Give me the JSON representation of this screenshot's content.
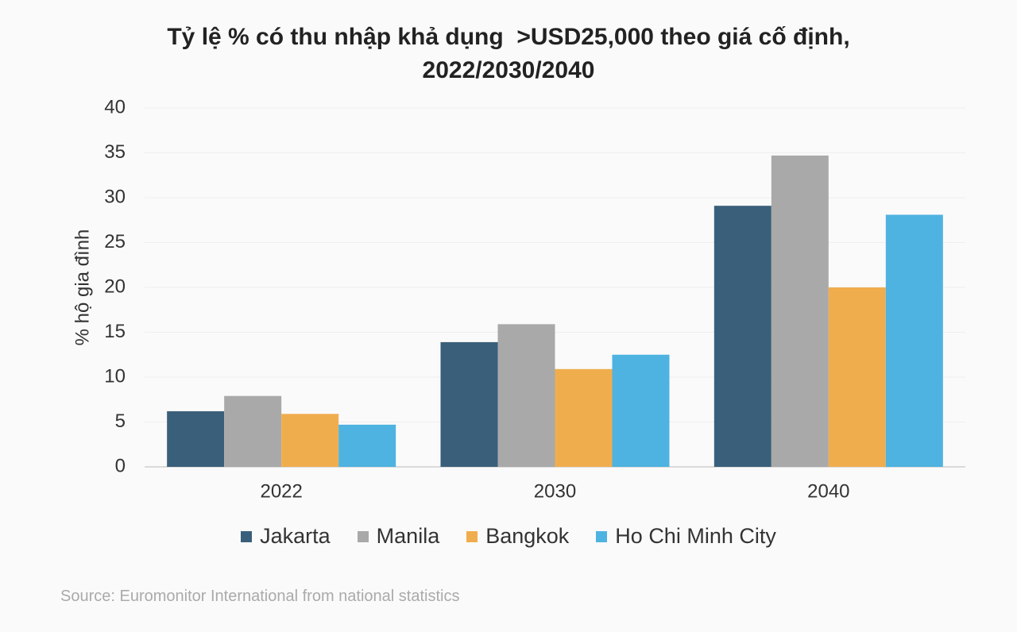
{
  "chart_data": {
    "type": "bar",
    "title": "Tỷ lệ % có thu nhập khả dụng  >USD25,000 theo giá cố định, 2022/2030/2040",
    "y_label": "% hộ gia đình",
    "categories": [
      "2022",
      "2030",
      "2040"
    ],
    "series": [
      {
        "name": "Jakarta",
        "color": "#3a5f7a",
        "values": [
          6.2,
          13.9,
          29.1
        ]
      },
      {
        "name": "Manila",
        "color": "#a9a9a9",
        "values": [
          7.9,
          15.9,
          34.7
        ]
      },
      {
        "name": "Bangkok",
        "color": "#f0ad4e",
        "values": [
          5.9,
          10.9,
          20.0
        ]
      },
      {
        "name": "Ho Chi Minh City",
        "color": "#4eb3e0",
        "values": [
          4.7,
          12.5,
          28.1
        ]
      }
    ],
    "ylim": [
      0,
      40
    ],
    "yticks": [
      0,
      5,
      10,
      15,
      20,
      25,
      30,
      35,
      40
    ],
    "grid": true,
    "source": "Source: Euromonitor International from national statistics"
  }
}
